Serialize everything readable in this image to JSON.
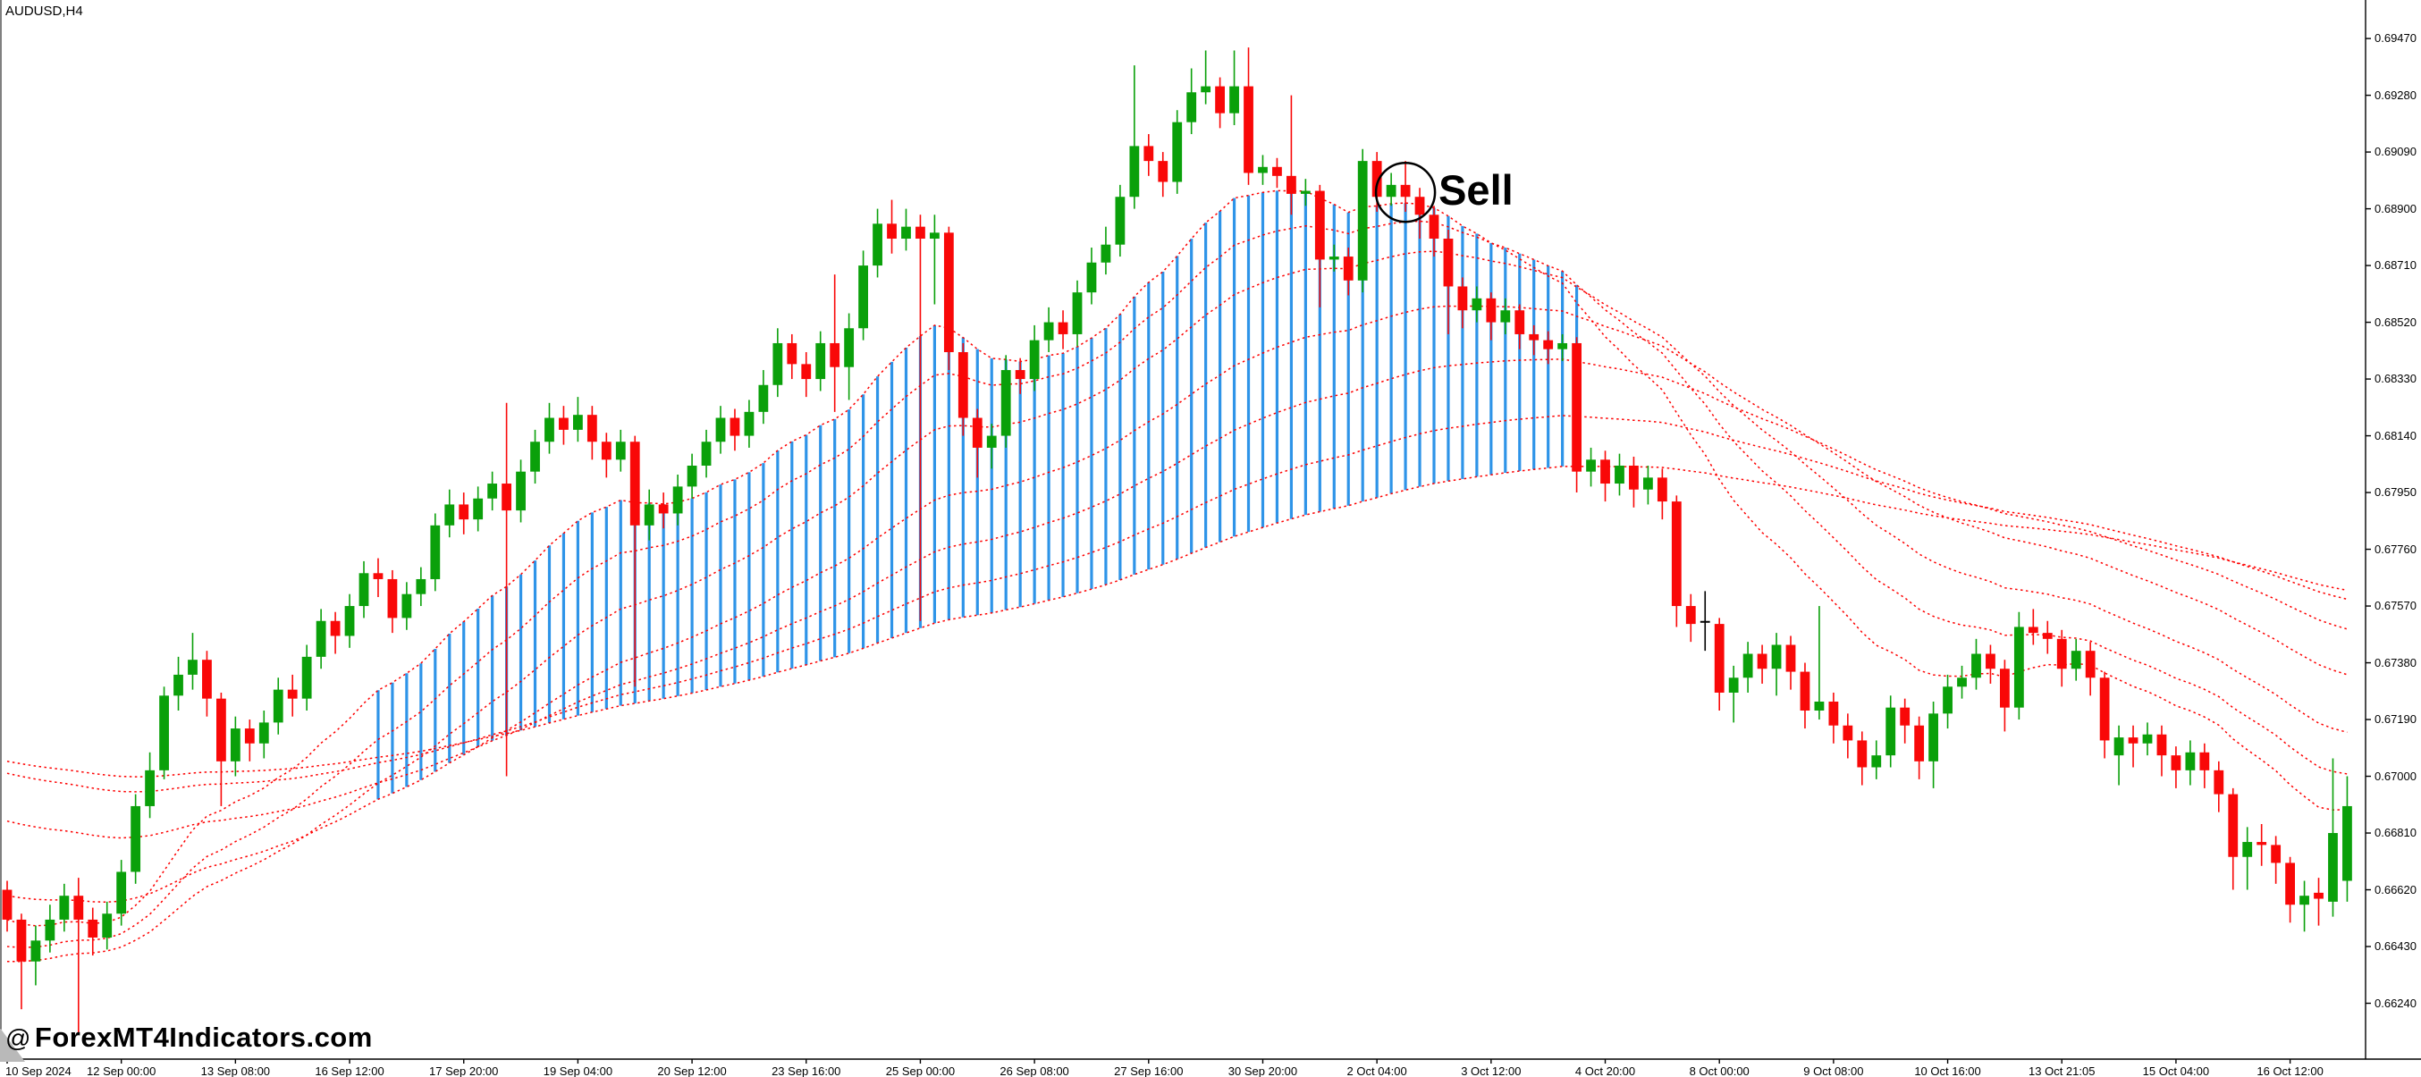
{
  "app": {
    "symbol_label": "AUDUSD,H4"
  },
  "watermark": {
    "at": "@",
    "text": "ForexMT4Indicators.com"
  },
  "annotation": {
    "sell_label": "Sell",
    "bar": 98,
    "price": 0.68955,
    "circle_radius": 33
  },
  "chart_data": {
    "type": "candlestick",
    "title": "AUDUSD H4 candlestick chart with moving-average fan and trend fill",
    "symbol": "AUDUSD",
    "timeframe": "H4",
    "ylim": [
      0.66053,
      0.69599
    ],
    "y_ticks": [
      "0.69470",
      "0.69280",
      "0.69090",
      "0.68900",
      "0.68710",
      "0.68520",
      "0.68330",
      "0.68140",
      "0.67950",
      "0.67760",
      "0.67570",
      "0.67380",
      "0.67190",
      "0.67000",
      "0.66810",
      "0.66620",
      "0.66430",
      "0.66240"
    ],
    "x_labels": [
      "10 Sep 2024",
      "12 Sep 00:00",
      "13 Sep 08:00",
      "16 Sep 12:00",
      "17 Sep 20:00",
      "19 Sep 04:00",
      "20 Sep 12:00",
      "23 Sep 16:00",
      "25 Sep 00:00",
      "26 Sep 08:00",
      "27 Sep 16:00",
      "30 Sep 20:00",
      "2 Oct 04:00",
      "3 Oct 12:00",
      "4 Oct 20:00",
      "8 Oct 00:00",
      "9 Oct 08:00",
      "10 Oct 16:00",
      "13 Oct 21:05",
      "15 Oct 04:00",
      "16 Oct 12:00"
    ],
    "x_label_every_n_bars": 8,
    "layout": {
      "first_bar_x": 8,
      "bar_spacing_px": 15.96,
      "axis_x": 2646,
      "axis_y": 1185,
      "grid": false,
      "legend": false
    },
    "colors": {
      "up": "#0aa00a",
      "down": "#f90808",
      "doji": "#000000",
      "fill_line": "#2e94e8",
      "ma_line": "#fe0000",
      "axis": "#000000",
      "background": "#ffffff"
    },
    "indicators": {
      "ma_fan": {
        "style": "dotted",
        "color": "#fe0000",
        "periods": [
          18,
          28,
          40,
          60,
          85,
          120,
          160
        ],
        "seeds": [
          0.6652,
          0.6643,
          0.6638,
          0.666,
          0.6685,
          0.6701,
          0.6705
        ]
      },
      "trend_fill": {
        "color": "#2e94e8",
        "from_bar": 26,
        "to_bar": 110
      }
    },
    "black_doji_bars": [
      119
    ],
    "candles": [
      [
        0.6662,
        0.6665,
        0.6648,
        0.6652
      ],
      [
        0.6652,
        0.6654,
        0.6622,
        0.6638
      ],
      [
        0.6638,
        0.665,
        0.663,
        0.6645
      ],
      [
        0.6645,
        0.6657,
        0.6641,
        0.6652
      ],
      [
        0.6652,
        0.6664,
        0.6648,
        0.666
      ],
      [
        0.666,
        0.6666,
        0.6614,
        0.6652
      ],
      [
        0.6652,
        0.6656,
        0.664,
        0.6646
      ],
      [
        0.6646,
        0.6658,
        0.6642,
        0.6654
      ],
      [
        0.6654,
        0.6672,
        0.665,
        0.6668
      ],
      [
        0.6668,
        0.6694,
        0.6664,
        0.669
      ],
      [
        0.669,
        0.6708,
        0.6686,
        0.6702
      ],
      [
        0.6702,
        0.673,
        0.6699,
        0.6727
      ],
      [
        0.6727,
        0.674,
        0.6722,
        0.6734
      ],
      [
        0.6734,
        0.6748,
        0.6729,
        0.6739
      ],
      [
        0.6739,
        0.6742,
        0.672,
        0.6726
      ],
      [
        0.6726,
        0.6728,
        0.669,
        0.6705
      ],
      [
        0.6705,
        0.672,
        0.67,
        0.6716
      ],
      [
        0.6716,
        0.6719,
        0.6705,
        0.6711
      ],
      [
        0.6711,
        0.6722,
        0.6706,
        0.6718
      ],
      [
        0.6718,
        0.6733,
        0.6714,
        0.6729
      ],
      [
        0.6729,
        0.6734,
        0.672,
        0.6726
      ],
      [
        0.6726,
        0.6744,
        0.6722,
        0.674
      ],
      [
        0.674,
        0.6756,
        0.6736,
        0.6752
      ],
      [
        0.6752,
        0.6755,
        0.6741,
        0.6747
      ],
      [
        0.6747,
        0.6761,
        0.6743,
        0.6757
      ],
      [
        0.6757,
        0.6772,
        0.6753,
        0.6768
      ],
      [
        0.6768,
        0.6773,
        0.676,
        0.6766
      ],
      [
        0.6766,
        0.6769,
        0.6748,
        0.6753
      ],
      [
        0.6753,
        0.6765,
        0.6749,
        0.6761
      ],
      [
        0.6761,
        0.677,
        0.6757,
        0.6766
      ],
      [
        0.6766,
        0.6788,
        0.6762,
        0.6784
      ],
      [
        0.6784,
        0.6796,
        0.678,
        0.6791
      ],
      [
        0.6791,
        0.6795,
        0.6781,
        0.6786
      ],
      [
        0.6786,
        0.6797,
        0.6782,
        0.6793
      ],
      [
        0.6793,
        0.6802,
        0.6789,
        0.6798
      ],
      [
        0.6798,
        0.6825,
        0.67,
        0.6789
      ],
      [
        0.6789,
        0.6806,
        0.6785,
        0.6802
      ],
      [
        0.6802,
        0.6816,
        0.6798,
        0.6812
      ],
      [
        0.6812,
        0.6825,
        0.6808,
        0.682
      ],
      [
        0.682,
        0.6824,
        0.6811,
        0.6816
      ],
      [
        0.6816,
        0.6827,
        0.6812,
        0.6821
      ],
      [
        0.6821,
        0.6824,
        0.6806,
        0.6812
      ],
      [
        0.6812,
        0.6815,
        0.68,
        0.6806
      ],
      [
        0.6806,
        0.6816,
        0.6802,
        0.6812
      ],
      [
        0.6812,
        0.6814,
        0.673,
        0.6784
      ],
      [
        0.6784,
        0.6796,
        0.6779,
        0.6791
      ],
      [
        0.6791,
        0.6795,
        0.6783,
        0.6788
      ],
      [
        0.6788,
        0.6801,
        0.6784,
        0.6797
      ],
      [
        0.6797,
        0.6808,
        0.6793,
        0.6804
      ],
      [
        0.6804,
        0.6816,
        0.68,
        0.6812
      ],
      [
        0.6812,
        0.6824,
        0.6808,
        0.682
      ],
      [
        0.682,
        0.6823,
        0.6809,
        0.6814
      ],
      [
        0.6814,
        0.6826,
        0.681,
        0.6822
      ],
      [
        0.6822,
        0.6836,
        0.6818,
        0.6831
      ],
      [
        0.6831,
        0.685,
        0.6827,
        0.6845
      ],
      [
        0.6845,
        0.6848,
        0.6833,
        0.6838
      ],
      [
        0.6838,
        0.6842,
        0.6827,
        0.6833
      ],
      [
        0.6833,
        0.6849,
        0.6829,
        0.6845
      ],
      [
        0.6845,
        0.6868,
        0.6822,
        0.6837
      ],
      [
        0.6837,
        0.6855,
        0.6826,
        0.685
      ],
      [
        0.685,
        0.6876,
        0.6846,
        0.6871
      ],
      [
        0.6871,
        0.689,
        0.6867,
        0.6885
      ],
      [
        0.6885,
        0.6893,
        0.6875,
        0.688
      ],
      [
        0.688,
        0.689,
        0.6876,
        0.6884
      ],
      [
        0.6884,
        0.6888,
        0.6752,
        0.688
      ],
      [
        0.688,
        0.6888,
        0.6858,
        0.6882
      ],
      [
        0.6882,
        0.6884,
        0.6836,
        0.6842
      ],
      [
        0.6842,
        0.6845,
        0.6814,
        0.682
      ],
      [
        0.682,
        0.6823,
        0.68,
        0.681
      ],
      [
        0.681,
        0.6818,
        0.6803,
        0.6814
      ],
      [
        0.6814,
        0.6841,
        0.681,
        0.6836
      ],
      [
        0.6836,
        0.684,
        0.6828,
        0.6833
      ],
      [
        0.6833,
        0.6851,
        0.6829,
        0.6846
      ],
      [
        0.6846,
        0.6857,
        0.6842,
        0.6852
      ],
      [
        0.6852,
        0.6856,
        0.6843,
        0.6848
      ],
      [
        0.6848,
        0.6866,
        0.6844,
        0.6862
      ],
      [
        0.6862,
        0.6877,
        0.6858,
        0.6872
      ],
      [
        0.6872,
        0.6884,
        0.6868,
        0.6878
      ],
      [
        0.6878,
        0.6898,
        0.6874,
        0.6894
      ],
      [
        0.6894,
        0.6938,
        0.689,
        0.6911
      ],
      [
        0.6911,
        0.6915,
        0.6901,
        0.6906
      ],
      [
        0.6906,
        0.6909,
        0.6894,
        0.6899
      ],
      [
        0.6899,
        0.6923,
        0.6895,
        0.6919
      ],
      [
        0.6919,
        0.6937,
        0.6915,
        0.6929
      ],
      [
        0.6929,
        0.6943,
        0.6925,
        0.6931
      ],
      [
        0.6931,
        0.6934,
        0.6917,
        0.6922
      ],
      [
        0.6922,
        0.6943,
        0.6918,
        0.6931
      ],
      [
        0.6931,
        0.6944,
        0.6898,
        0.6902
      ],
      [
        0.6902,
        0.6908,
        0.6898,
        0.6904
      ],
      [
        0.6904,
        0.6907,
        0.6897,
        0.6901
      ],
      [
        0.6901,
        0.6928,
        0.6888,
        0.6895
      ],
      [
        0.6895,
        0.69,
        0.6891,
        0.6896
      ],
      [
        0.6896,
        0.6898,
        0.6857,
        0.6873
      ],
      [
        0.6873,
        0.6878,
        0.6869,
        0.6874
      ],
      [
        0.6874,
        0.6877,
        0.6861,
        0.6866
      ],
      [
        0.6866,
        0.691,
        0.6862,
        0.6906
      ],
      [
        0.6906,
        0.6909,
        0.6889,
        0.6894
      ],
      [
        0.6894,
        0.6902,
        0.6891,
        0.6898
      ],
      [
        0.6898,
        0.6906,
        0.6889,
        0.6894
      ],
      [
        0.6894,
        0.6897,
        0.688,
        0.6888
      ],
      [
        0.6888,
        0.6891,
        0.6874,
        0.688
      ],
      [
        0.688,
        0.6883,
        0.6848,
        0.6864
      ],
      [
        0.6864,
        0.6867,
        0.685,
        0.6856
      ],
      [
        0.6856,
        0.6864,
        0.6852,
        0.686
      ],
      [
        0.686,
        0.6862,
        0.6846,
        0.6852
      ],
      [
        0.6852,
        0.686,
        0.6848,
        0.6856
      ],
      [
        0.6856,
        0.6858,
        0.6843,
        0.6848
      ],
      [
        0.6848,
        0.6851,
        0.6841,
        0.6846
      ],
      [
        0.6846,
        0.6849,
        0.6838,
        0.6843
      ],
      [
        0.6843,
        0.6848,
        0.6839,
        0.6845
      ],
      [
        0.6845,
        0.6847,
        0.6795,
        0.6802
      ],
      [
        0.6802,
        0.681,
        0.6797,
        0.6806
      ],
      [
        0.6806,
        0.6809,
        0.6792,
        0.6798
      ],
      [
        0.6798,
        0.6808,
        0.6794,
        0.6804
      ],
      [
        0.6804,
        0.6807,
        0.679,
        0.6796
      ],
      [
        0.6796,
        0.6804,
        0.6791,
        0.68
      ],
      [
        0.68,
        0.6803,
        0.6786,
        0.6792
      ],
      [
        0.6792,
        0.6794,
        0.675,
        0.6757
      ],
      [
        0.6757,
        0.6761,
        0.6745,
        0.6751
      ],
      [
        0.6752,
        0.6762,
        0.6742,
        0.6752
      ],
      [
        0.6751,
        0.6753,
        0.6722,
        0.6728
      ],
      [
        0.6728,
        0.6737,
        0.6718,
        0.6733
      ],
      [
        0.6733,
        0.6745,
        0.6728,
        0.6741
      ],
      [
        0.6741,
        0.6744,
        0.6731,
        0.6736
      ],
      [
        0.6736,
        0.6748,
        0.6727,
        0.6744
      ],
      [
        0.6744,
        0.6747,
        0.6729,
        0.6735
      ],
      [
        0.6735,
        0.6738,
        0.6716,
        0.6722
      ],
      [
        0.6722,
        0.6757,
        0.6719,
        0.6725
      ],
      [
        0.6725,
        0.6728,
        0.6711,
        0.6717
      ],
      [
        0.6717,
        0.6721,
        0.6706,
        0.6712
      ],
      [
        0.6712,
        0.6715,
        0.6697,
        0.6703
      ],
      [
        0.6703,
        0.6712,
        0.6699,
        0.6707
      ],
      [
        0.6707,
        0.6727,
        0.6703,
        0.6723
      ],
      [
        0.6723,
        0.6726,
        0.6711,
        0.6717
      ],
      [
        0.6717,
        0.672,
        0.6699,
        0.6705
      ],
      [
        0.6705,
        0.6725,
        0.6696,
        0.6721
      ],
      [
        0.6721,
        0.6734,
        0.6716,
        0.673
      ],
      [
        0.673,
        0.6737,
        0.6726,
        0.6733
      ],
      [
        0.6733,
        0.6746,
        0.6729,
        0.6741
      ],
      [
        0.6741,
        0.6744,
        0.6731,
        0.6736
      ],
      [
        0.6736,
        0.6739,
        0.6715,
        0.6723
      ],
      [
        0.6723,
        0.6755,
        0.6719,
        0.675
      ],
      [
        0.675,
        0.6756,
        0.6744,
        0.6748
      ],
      [
        0.6748,
        0.6752,
        0.6741,
        0.6746
      ],
      [
        0.6746,
        0.6749,
        0.673,
        0.6736
      ],
      [
        0.6736,
        0.6746,
        0.6732,
        0.6742
      ],
      [
        0.6742,
        0.6745,
        0.6727,
        0.6733
      ],
      [
        0.6733,
        0.6735,
        0.6706,
        0.6712
      ],
      [
        0.6707,
        0.6717,
        0.6697,
        0.6713
      ],
      [
        0.6713,
        0.6717,
        0.6703,
        0.6711
      ],
      [
        0.6711,
        0.6718,
        0.6707,
        0.6714
      ],
      [
        0.6714,
        0.6717,
        0.67,
        0.6707
      ],
      [
        0.6707,
        0.671,
        0.6696,
        0.6702
      ],
      [
        0.6702,
        0.6712,
        0.6697,
        0.6708
      ],
      [
        0.6708,
        0.6711,
        0.6696,
        0.6702
      ],
      [
        0.6702,
        0.6705,
        0.6688,
        0.6694
      ],
      [
        0.6694,
        0.6696,
        0.6662,
        0.6673
      ],
      [
        0.6673,
        0.6683,
        0.6662,
        0.6678
      ],
      [
        0.6678,
        0.6684,
        0.667,
        0.6677
      ],
      [
        0.6677,
        0.668,
        0.6664,
        0.6671
      ],
      [
        0.6671,
        0.6673,
        0.6651,
        0.6657
      ],
      [
        0.6657,
        0.6665,
        0.6648,
        0.666
      ],
      [
        0.6661,
        0.6666,
        0.665,
        0.6659
      ],
      [
        0.6658,
        0.6706,
        0.6653,
        0.6681
      ],
      [
        0.6665,
        0.67,
        0.6658,
        0.669
      ]
    ]
  }
}
